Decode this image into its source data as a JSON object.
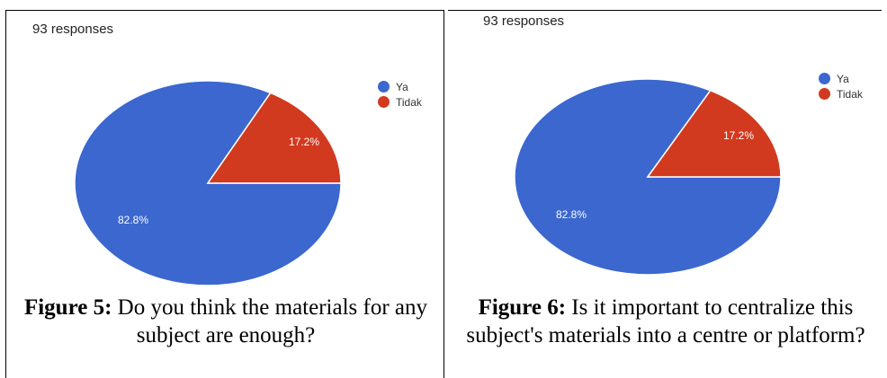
{
  "chart_data": [
    {
      "type": "pie",
      "subtitle": "93 responses",
      "categories": [
        "Ya",
        "Tidak"
      ],
      "values": [
        82.8,
        17.2
      ],
      "slice_labels": [
        "82.8%",
        "17.2%"
      ],
      "colors": [
        "#3b67cf",
        "#d23a1f"
      ],
      "legend_position": "top-right",
      "caption_label": "Figure 5:",
      "caption_text": "Do you think the materials for any subject are enough?"
    },
    {
      "type": "pie",
      "subtitle": "93 responses",
      "categories": [
        "Ya",
        "Tidak"
      ],
      "values": [
        82.8,
        17.2
      ],
      "slice_labels": [
        "82.8%",
        "17.2%"
      ],
      "colors": [
        "#3b67cf",
        "#d23a1f"
      ],
      "legend_position": "top-right",
      "caption_label": "Figure 6:",
      "caption_text": "Is it important to centralize this subject's materials into a centre or platform?"
    }
  ]
}
